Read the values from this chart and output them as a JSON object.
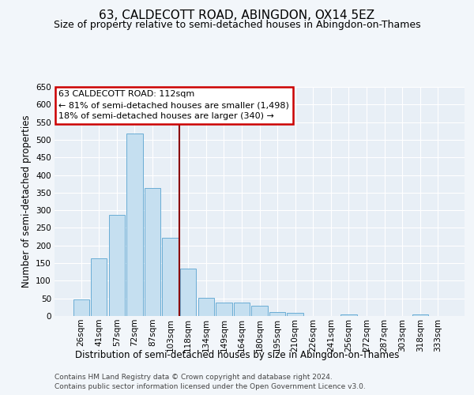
{
  "title": "63, CALDECOTT ROAD, ABINGDON, OX14 5EZ",
  "subtitle": "Size of property relative to semi-detached houses in Abingdon-on-Thames",
  "xlabel": "Distribution of semi-detached houses by size in Abingdon-on-Thames",
  "ylabel": "Number of semi-detached properties",
  "footer1": "Contains HM Land Registry data © Crown copyright and database right 2024.",
  "footer2": "Contains public sector information licensed under the Open Government Licence v3.0.",
  "categories": [
    "26sqm",
    "41sqm",
    "57sqm",
    "72sqm",
    "87sqm",
    "103sqm",
    "118sqm",
    "134sqm",
    "149sqm",
    "164sqm",
    "180sqm",
    "195sqm",
    "210sqm",
    "226sqm",
    "241sqm",
    "256sqm",
    "272sqm",
    "287sqm",
    "303sqm",
    "318sqm",
    "333sqm"
  ],
  "values": [
    46,
    163,
    286,
    517,
    362,
    222,
    135,
    51,
    37,
    37,
    29,
    12,
    10,
    0,
    0,
    5,
    0,
    0,
    0,
    5,
    0
  ],
  "bar_color": "#c5dff0",
  "bar_edge_color": "#6aadd5",
  "vline_x": 5.5,
  "vline_color": "#8b0000",
  "annotation_text": "63 CALDECOTT ROAD: 112sqm\n← 81% of semi-detached houses are smaller (1,498)\n18% of semi-detached houses are larger (340) →",
  "annotation_box_facecolor": "#ffffff",
  "annotation_box_edgecolor": "#cc0000",
  "ylim": [
    0,
    650
  ],
  "yticks": [
    0,
    50,
    100,
    150,
    200,
    250,
    300,
    350,
    400,
    450,
    500,
    550,
    600,
    650
  ],
  "plot_bg_color": "#e8eff6",
  "fig_bg_color": "#f2f6fa",
  "grid_color": "#ffffff",
  "title_fontsize": 11,
  "subtitle_fontsize": 9,
  "xlabel_fontsize": 8.5,
  "ylabel_fontsize": 8.5,
  "tick_fontsize": 7.5,
  "annotation_fontsize": 8,
  "footer_fontsize": 6.5
}
